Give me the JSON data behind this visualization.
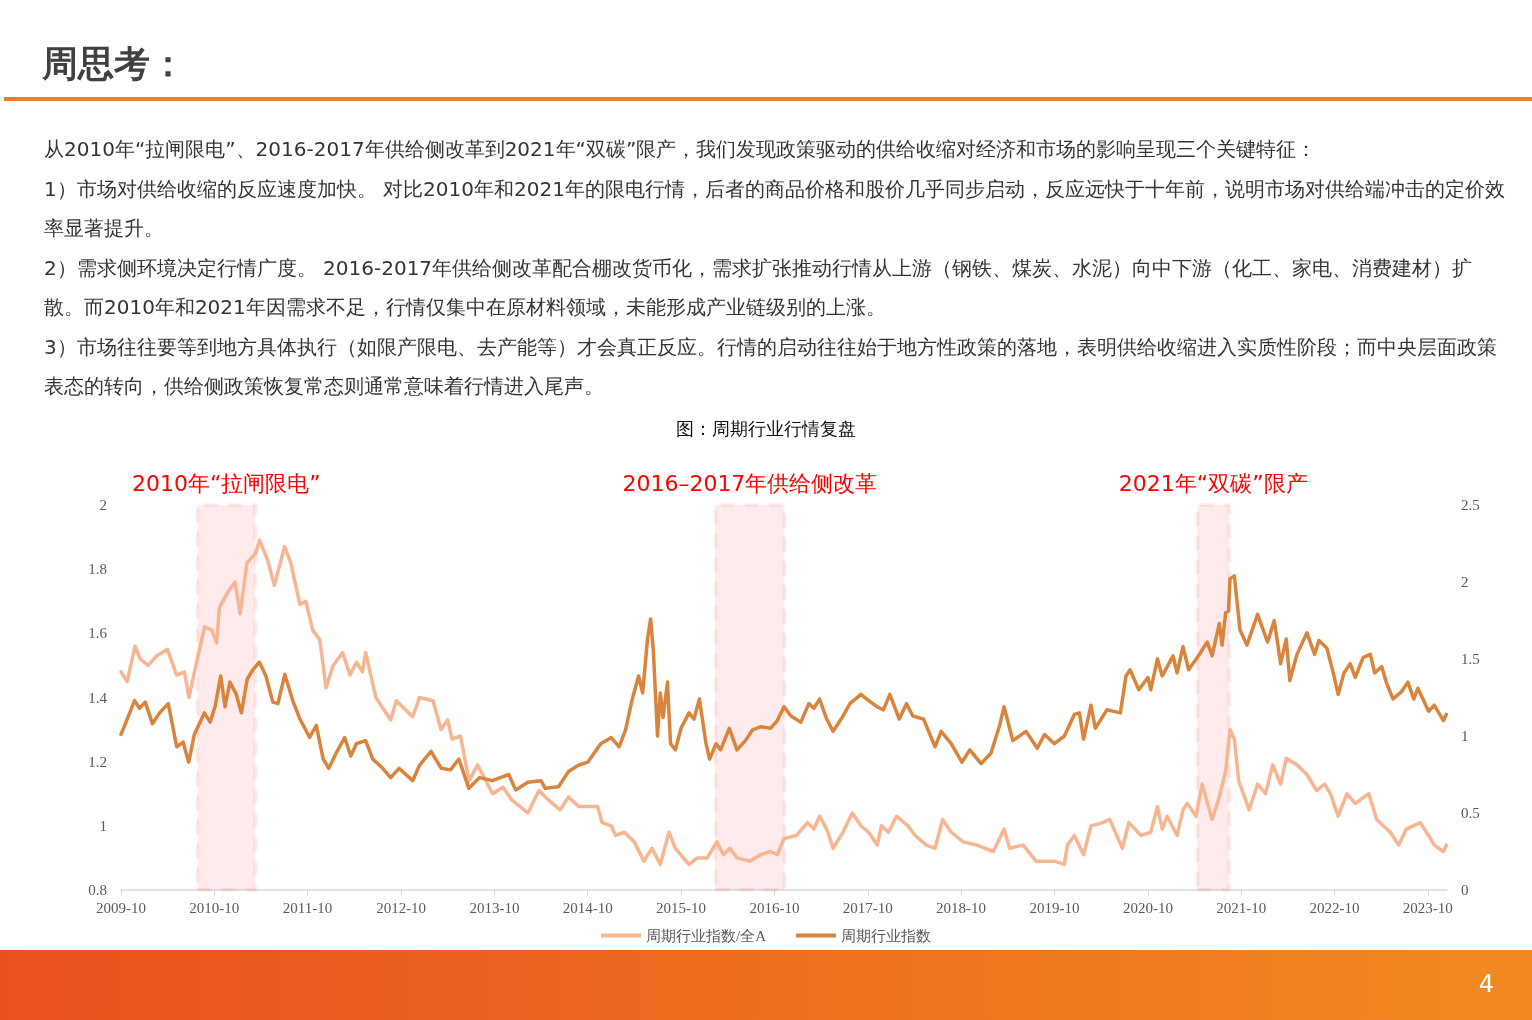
{
  "chart_data": {
    "type": "line",
    "title": "图：周期行业行情复盘",
    "annotations": [
      "周思考：",
      "从2010年“拉闸限电”、2016-2017年供给侧改革到2021年“双碳”限产，我们发现政策驱动的供给收缩对经济和市场的影响呈现三个关键特征：",
      "1）市场对供给收缩的反应速度加快。 对比2010年和2021年的限电行情，后者的商品价格和股价几乎同步启动，反应远快于十年前，说明市场对供给端冲击的定价效率显著提升。",
      "2）需求侧环境决定行情广度。 2016-2017年供给侧改革配合棚改货币化，需求扩张推动行情从上游（钢铁、煤炭、水泥）向中下游（化工、家电、消费建材）扩散。而2010年和2021年因需求不足，行情仅集中在原材料领域，未能形成产业链级别的上涨。",
      "3）市场往往要等到地方具体执行（如限产限电、去产能等）才会真正反应。行情的启动往往始于地方性政策的落地，表明供给收缩进入实质性阶段；而中央层面政策表态的转向，供给侧政策恢复常态则通常意味着行情进入尾声。",
      "4"
    ],
    "xlim": [
      "2009-10-01",
      "2023-12-15"
    ],
    "xticks": [
      "2009-10",
      "2010-10",
      "2011-10",
      "2012-10",
      "2013-10",
      "2014-10",
      "2015-10",
      "2016-10",
      "2017-10",
      "2018-10",
      "2019-10",
      "2020-10",
      "2021-10",
      "2022-10",
      "2023-10"
    ],
    "ylim": [
      0.8,
      2
    ],
    "yticks": [
      0.8,
      1,
      1.2,
      1.4,
      1.6,
      1.8,
      2
    ],
    "y2lim": [
      0,
      2.5
    ],
    "y2ticks": [
      0,
      0.5,
      1,
      1.5,
      2,
      2.5
    ],
    "legend": "bottom",
    "marker": "none",
    "line_style": "solid",
    "bands": [
      {
        "axis": "x",
        "from": "2010-07-27",
        "to": "2011-03-10",
        "label": "2010年“拉闸限电”",
        "color": "#ff0000"
      },
      {
        "axis": "x",
        "from": "2016-02-12",
        "to": "2016-11-09",
        "label": "2016–2017年供给侧改革",
        "color": "#ff0000"
      },
      {
        "axis": "x",
        "from": "2021-04-12",
        "to": "2021-08-15",
        "label": "2021年“双碳”限产",
        "color": "#ff0000"
      }
    ],
    "series": [
      {
        "name": "周期行业指数/全A",
        "color": "#f7b592",
        "x": [
          "2009-10-01",
          "2009-10-25",
          "2009-11-25",
          "2009-12-15",
          "2010-01-15",
          "2010-02-18",
          "2010-04-01",
          "2010-05-06",
          "2010-06-06",
          "2010-06-24",
          "2010-07-21",
          "2010-08-24",
          "2010-09-21",
          "2010-10-10",
          "2010-10-21",
          "2010-11-24",
          "2010-12-21",
          "2011-01-10",
          "2011-02-06",
          "2011-03-12",
          "2011-03-27",
          "2011-04-27",
          "2011-05-24",
          "2011-07-03",
          "2011-07-27",
          "2011-09-01",
          "2011-09-24",
          "2011-10-21",
          "2011-11-18",
          "2011-12-12",
          "2012-01-09",
          "2012-02-15",
          "2012-03-15",
          "2012-04-09",
          "2012-05-03",
          "2012-05-15",
          "2012-06-24",
          "2012-08-21",
          "2012-09-12",
          "2012-11-15",
          "2012-12-12",
          "2013-02-03",
          "2013-03-06",
          "2013-04-01",
          "2013-04-18",
          "2013-05-21",
          "2013-06-24",
          "2013-07-27",
          "2013-09-24",
          "2013-11-03",
          "2013-12-09",
          "2014-02-09",
          "2014-03-24",
          "2014-05-01",
          "2014-06-15",
          "2014-07-18",
          "2014-08-27",
          "2014-10-01",
          "2014-11-09",
          "2014-11-26",
          "2015-01-01",
          "2015-01-18",
          "2015-02-21",
          "2015-04-01",
          "2015-05-09",
          "2015-06-09",
          "2015-07-12",
          "2015-08-15",
          "2015-09-09",
          "2015-11-01",
          "2015-12-04",
          "2016-01-12",
          "2016-02-18",
          "2016-03-15",
          "2016-04-09",
          "2016-05-07",
          "2016-06-26",
          "2016-08-07",
          "2016-09-15",
          "2016-10-12",
          "2016-11-07",
          "2016-12-26",
          "2017-02-07",
          "2017-03-04",
          "2017-03-26",
          "2017-04-23",
          "2017-05-18",
          "2017-06-26",
          "2017-08-01",
          "2017-09-04",
          "2017-10-04",
          "2017-11-07",
          "2017-11-23",
          "2017-12-21",
          "2018-01-21",
          "2018-03-07",
          "2018-04-04",
          "2018-05-18",
          "2018-06-21",
          "2018-07-21",
          "2018-08-23",
          "2018-10-09",
          "2018-12-01",
          "2019-02-04",
          "2019-03-18",
          "2019-04-09",
          "2019-06-01",
          "2019-07-21",
          "2019-09-07",
          "2019-10-01",
          "2019-11-09",
          "2019-11-21",
          "2019-12-18",
          "2020-01-23",
          "2020-02-21",
          "2020-04-07",
          "2020-05-04",
          "2020-06-23",
          "2020-07-18",
          "2020-09-04",
          "2020-10-12",
          "2020-11-07",
          "2020-11-26",
          "2020-12-15",
          "2021-01-23",
          "2021-02-15",
          "2021-03-04",
          "2021-04-07",
          "2021-05-01",
          "2021-06-09",
          "2021-07-07",
          "2021-08-01",
          "2021-08-18",
          "2021-09-04",
          "2021-09-21",
          "2021-11-01",
          "2021-12-04",
          "2022-01-04",
          "2022-02-01",
          "2022-03-04",
          "2022-03-26",
          "2022-05-07",
          "2022-06-15",
          "2022-07-23",
          "2022-08-23",
          "2022-09-15",
          "2022-10-15",
          "2022-11-18",
          "2022-12-21",
          "2023-02-12",
          "2023-03-15",
          "2023-05-07",
          "2023-06-09",
          "2023-07-09",
          "2023-09-01",
          "2023-10-04",
          "2023-10-26",
          "2023-12-01",
          "2023-12-12"
        ],
        "values": [
          1.48,
          1.45,
          1.56,
          1.52,
          1.5,
          1.53,
          1.55,
          1.47,
          1.48,
          1.4,
          1.5,
          1.62,
          1.61,
          1.57,
          1.68,
          1.73,
          1.76,
          1.66,
          1.82,
          1.85,
          1.89,
          1.83,
          1.75,
          1.87,
          1.82,
          1.69,
          1.7,
          1.61,
          1.58,
          1.43,
          1.5,
          1.54,
          1.47,
          1.51,
          1.48,
          1.54,
          1.4,
          1.33,
          1.39,
          1.34,
          1.4,
          1.39,
          1.3,
          1.33,
          1.27,
          1.28,
          1.14,
          1.19,
          1.1,
          1.12,
          1.08,
          1.04,
          1.11,
          1.08,
          1.05,
          1.09,
          1.06,
          1.06,
          1.06,
          1.01,
          1,
          0.97,
          0.98,
          0.95,
          0.89,
          0.93,
          0.88,
          0.98,
          0.93,
          0.88,
          0.9,
          0.9,
          0.95,
          0.91,
          0.93,
          0.9,
          0.89,
          0.91,
          0.92,
          0.91,
          0.96,
          0.97,
          1.01,
          0.99,
          1.03,
          0.99,
          0.93,
          0.98,
          1.04,
          1,
          0.98,
          0.94,
          1,
          0.98,
          1.03,
          1,
          0.97,
          0.94,
          0.93,
          1.02,
          0.98,
          0.95,
          0.94,
          0.92,
          0.99,
          0.93,
          0.94,
          0.89,
          0.89,
          0.89,
          0.88,
          0.94,
          0.97,
          0.91,
          1,
          1.01,
          1.02,
          0.93,
          1.01,
          0.97,
          0.98,
          1.06,
          0.99,
          1.03,
          0.97,
          1.05,
          1.07,
          1.03,
          1.13,
          1.02,
          1.09,
          1.17,
          1.3,
          1.27,
          1.14,
          1.05,
          1.13,
          1.1,
          1.19,
          1.13,
          1.21,
          1.19,
          1.16,
          1.11,
          1.13,
          1.1,
          1.03,
          1.1,
          1.07,
          1.1,
          1.02,
          0.98,
          0.94,
          0.99,
          1.01,
          0.97,
          0.94,
          0.92,
          0.94
        ]
      },
      {
        "name": "周期行业指数",
        "color": "#d9843c",
        "axis": "y2",
        "x": [
          "2009-10-01",
          "2009-10-23",
          "2009-11-23",
          "2009-12-12",
          "2010-01-04",
          "2010-02-01",
          "2010-03-01",
          "2010-04-04",
          "2010-05-07",
          "2010-06-01",
          "2010-06-23",
          "2010-07-15",
          "2010-08-23",
          "2010-09-15",
          "2010-10-04",
          "2010-10-26",
          "2010-11-12",
          "2010-12-01",
          "2010-12-26",
          "2011-01-15",
          "2011-02-07",
          "2011-03-01",
          "2011-03-26",
          "2011-04-21",
          "2011-05-18",
          "2011-06-07",
          "2011-07-04",
          "2011-08-04",
          "2011-09-01",
          "2011-10-09",
          "2011-11-04",
          "2011-12-01",
          "2011-12-23",
          "2012-01-21",
          "2012-02-23",
          "2012-03-18",
          "2012-04-09",
          "2012-05-15",
          "2012-06-12",
          "2012-07-21",
          "2012-08-21",
          "2012-09-23",
          "2012-11-15",
          "2012-12-12",
          "2013-01-26",
          "2013-03-07",
          "2013-04-12",
          "2013-05-15",
          "2013-06-23",
          "2013-08-04",
          "2013-09-23",
          "2013-11-26",
          "2013-12-23",
          "2014-02-09",
          "2014-04-01",
          "2014-04-18",
          "2014-06-09",
          "2014-07-18",
          "2014-08-26",
          "2014-10-01",
          "2014-11-21",
          "2015-01-01",
          "2015-02-01",
          "2015-02-26",
          "2015-03-23",
          "2015-04-18",
          "2015-05-04",
          "2015-05-23",
          "2015-06-04",
          "2015-06-15",
          "2015-07-01",
          "2015-07-12",
          "2015-07-23",
          "2015-08-09",
          "2015-08-21",
          "2015-09-09",
          "2015-10-01",
          "2015-11-01",
          "2015-11-21",
          "2015-12-12",
          "2016-01-07",
          "2016-01-21",
          "2016-02-15",
          "2016-03-04",
          "2016-04-07",
          "2016-05-07",
          "2016-06-09",
          "2016-07-07",
          "2016-08-07",
          "2016-09-15",
          "2016-10-12",
          "2016-11-07",
          "2016-12-04",
          "2017-01-12",
          "2017-02-12",
          "2017-03-04",
          "2017-03-26",
          "2017-04-23",
          "2017-05-18",
          "2017-06-26",
          "2017-07-23",
          "2017-09-04",
          "2017-10-04",
          "2017-11-07",
          "2017-12-01",
          "2017-12-26",
          "2018-02-01",
          "2018-03-01",
          "2018-03-26",
          "2018-05-07",
          "2018-06-21",
          "2018-07-15",
          "2018-08-23",
          "2018-10-04",
          "2018-11-04",
          "2018-12-18",
          "2019-01-26",
          "2019-03-01",
          "2019-03-18",
          "2019-04-21",
          "2019-06-12",
          "2019-07-26",
          "2019-08-23",
          "2019-10-01",
          "2019-11-09",
          "2019-12-18",
          "2020-01-07",
          "2020-01-23",
          "2020-02-21",
          "2020-03-09",
          "2020-04-23",
          "2020-06-15",
          "2020-07-07",
          "2020-07-23",
          "2020-08-26",
          "2020-10-01",
          "2020-10-12",
          "2020-11-07",
          "2020-11-26",
          "2021-01-07",
          "2021-01-23",
          "2021-02-15",
          "2021-03-09",
          "2021-04-12",
          "2021-05-21",
          "2021-06-09",
          "2021-07-07",
          "2021-07-18",
          "2021-08-01",
          "2021-08-12",
          "2021-08-18",
          "2021-09-04",
          "2021-09-12",
          "2021-09-26",
          "2021-10-23",
          "2021-12-04",
          "2022-01-12",
          "2022-02-07",
          "2022-03-04",
          "2022-03-26",
          "2022-04-09",
          "2022-05-07",
          "2022-06-15",
          "2022-07-15",
          "2022-08-01",
          "2022-09-01",
          "2022-09-26",
          "2022-10-15",
          "2022-11-07",
          "2022-12-01",
          "2022-12-21",
          "2023-01-21",
          "2023-02-18",
          "2023-03-07",
          "2023-04-04",
          "2023-04-21",
          "2023-05-18",
          "2023-06-21",
          "2023-07-15",
          "2023-08-07",
          "2023-08-23",
          "2023-10-04",
          "2023-10-26",
          "2023-12-01",
          "2023-12-12"
        ],
        "values": [
          1.01,
          1.1,
          1.23,
          1.18,
          1.22,
          1.08,
          1.15,
          1.21,
          0.93,
          0.96,
          0.83,
          1.01,
          1.15,
          1.09,
          1.19,
          1.39,
          1.19,
          1.35,
          1.27,
          1.15,
          1.37,
          1.43,
          1.48,
          1.39,
          1.22,
          1.21,
          1.4,
          1.23,
          1.11,
          0.99,
          1.07,
          0.85,
          0.79,
          0.89,
          0.99,
          0.87,
          0.95,
          0.97,
          0.85,
          0.79,
          0.73,
          0.79,
          0.71,
          0.81,
          0.9,
          0.79,
          0.78,
          0.85,
          0.66,
          0.73,
          0.71,
          0.75,
          0.65,
          0.7,
          0.71,
          0.66,
          0.67,
          0.77,
          0.81,
          0.83,
          0.95,
          0.99,
          0.93,
          1.04,
          1.23,
          1.39,
          1.28,
          1.63,
          1.76,
          1.55,
          1,
          1.28,
          1.12,
          1.35,
          0.95,
          0.91,
          1.05,
          1.15,
          1.11,
          1.24,
          0.95,
          0.85,
          0.95,
          0.91,
          1.05,
          0.91,
          0.97,
          1.04,
          1.06,
          1.05,
          1.1,
          1.19,
          1.13,
          1.09,
          1.21,
          1.18,
          1.24,
          1.11,
          1.03,
          1.13,
          1.21,
          1.27,
          1.23,
          1.19,
          1.17,
          1.27,
          1.11,
          1.21,
          1.13,
          1.11,
          0.93,
          1.03,
          0.95,
          0.83,
          0.91,
          0.82,
          0.89,
          1.07,
          1.19,
          0.97,
          1.03,
          0.92,
          1.01,
          0.95,
          1,
          1.14,
          1.15,
          0.98,
          1.2,
          1.05,
          1.17,
          1.15,
          1.39,
          1.43,
          1.3,
          1.38,
          1.3,
          1.5,
          1.39,
          1.52,
          1.41,
          1.58,
          1.43,
          1.51,
          1.61,
          1.52,
          1.73,
          1.59,
          1.8,
          1.81,
          2.02,
          2.04,
          1.91,
          1.69,
          1.59,
          1.79,
          1.61,
          1.75,
          1.47,
          1.63,
          1.36,
          1.53,
          1.67,
          1.53,
          1.62,
          1.57,
          1.41,
          1.27,
          1.41,
          1.47,
          1.38,
          1.51,
          1.53,
          1.41,
          1.45,
          1.35,
          1.24,
          1.29,
          1.35,
          1.24,
          1.31,
          1.16,
          1.2,
          1.1,
          1.14
        ]
      }
    ]
  }
}
